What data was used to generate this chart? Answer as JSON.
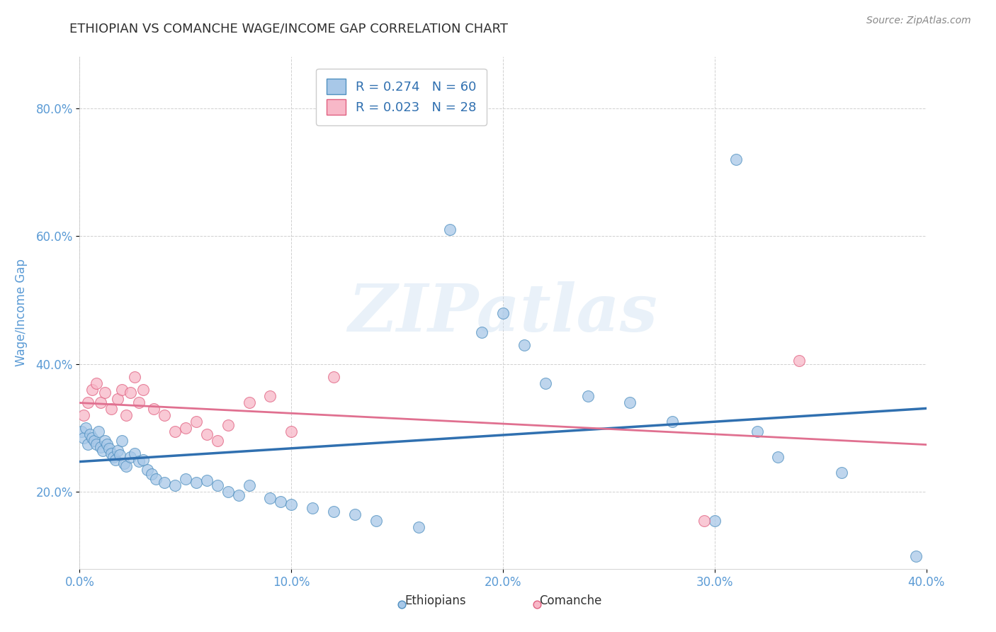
{
  "title": "ETHIOPIAN VS COMANCHE WAGE/INCOME GAP CORRELATION CHART",
  "source": "Source: ZipAtlas.com",
  "ylabel_label": "Wage/Income Gap",
  "xlim": [
    0.0,
    0.4
  ],
  "ylim": [
    0.08,
    0.88
  ],
  "ethiopians_x": [
    0.001,
    0.002,
    0.003,
    0.004,
    0.005,
    0.006,
    0.007,
    0.008,
    0.009,
    0.01,
    0.011,
    0.012,
    0.013,
    0.014,
    0.015,
    0.016,
    0.017,
    0.018,
    0.019,
    0.02,
    0.021,
    0.022,
    0.024,
    0.026,
    0.028,
    0.03,
    0.032,
    0.034,
    0.036,
    0.04,
    0.045,
    0.05,
    0.055,
    0.06,
    0.065,
    0.07,
    0.075,
    0.08,
    0.09,
    0.095,
    0.1,
    0.11,
    0.12,
    0.13,
    0.14,
    0.16,
    0.175,
    0.19,
    0.2,
    0.21,
    0.22,
    0.24,
    0.26,
    0.28,
    0.3,
    0.31,
    0.32,
    0.33,
    0.36,
    0.395
  ],
  "ethiopians_y": [
    0.295,
    0.285,
    0.3,
    0.275,
    0.29,
    0.285,
    0.28,
    0.275,
    0.295,
    0.27,
    0.265,
    0.28,
    0.275,
    0.268,
    0.26,
    0.255,
    0.25,
    0.265,
    0.258,
    0.28,
    0.245,
    0.24,
    0.255,
    0.26,
    0.248,
    0.25,
    0.235,
    0.228,
    0.22,
    0.215,
    0.21,
    0.22,
    0.215,
    0.218,
    0.21,
    0.2,
    0.195,
    0.21,
    0.19,
    0.185,
    0.18,
    0.175,
    0.17,
    0.165,
    0.155,
    0.145,
    0.61,
    0.45,
    0.48,
    0.43,
    0.37,
    0.35,
    0.34,
    0.31,
    0.155,
    0.72,
    0.295,
    0.255,
    0.23,
    0.1
  ],
  "comanche_x": [
    0.002,
    0.004,
    0.006,
    0.008,
    0.01,
    0.012,
    0.015,
    0.018,
    0.02,
    0.022,
    0.024,
    0.026,
    0.028,
    0.03,
    0.035,
    0.04,
    0.045,
    0.05,
    0.055,
    0.06,
    0.065,
    0.07,
    0.08,
    0.09,
    0.1,
    0.12,
    0.295,
    0.34
  ],
  "comanche_y": [
    0.32,
    0.34,
    0.36,
    0.37,
    0.34,
    0.355,
    0.33,
    0.345,
    0.36,
    0.32,
    0.355,
    0.38,
    0.34,
    0.36,
    0.33,
    0.32,
    0.295,
    0.3,
    0.31,
    0.29,
    0.28,
    0.305,
    0.34,
    0.35,
    0.295,
    0.38,
    0.155,
    0.405
  ],
  "ethiopians_color": "#a8c8e8",
  "comanche_color": "#f8b8c8",
  "ethiopians_edge": "#5090c0",
  "comanche_edge": "#e06080",
  "trend_ethiopians_color": "#3070b0",
  "trend_comanche_color": "#e07090",
  "R_ethiopians": 0.274,
  "N_ethiopians": 60,
  "R_comanche": 0.023,
  "N_comanche": 28,
  "background_color": "#ffffff",
  "grid_color": "#d0d0d0",
  "title_color": "#303030",
  "axis_label_color": "#5b9bd5",
  "tick_color": "#5b9bd5",
  "legend_color_eth": "#a8c8e8",
  "legend_color_com": "#f8b8c8",
  "legend_text_color": "#3070b0",
  "watermark_text": "ZIPatlas",
  "watermark_color": "#c8ddf0"
}
